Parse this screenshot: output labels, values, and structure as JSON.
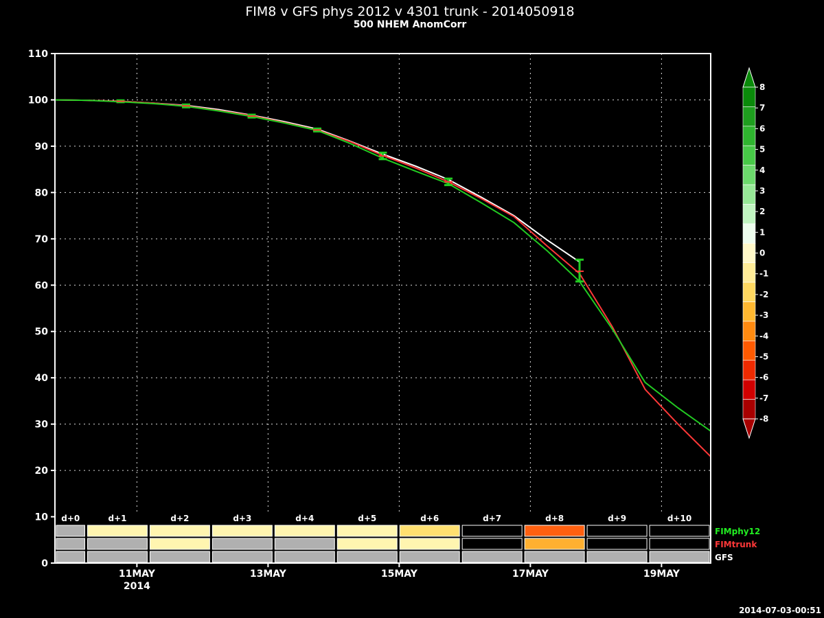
{
  "header": {
    "title": "FIM8 v GFS phys 2012 v 4301 trunk - 2014050918",
    "subtitle": "500 NHEM AnomCorr"
  },
  "timestamp": "2014-07-03-00:51",
  "chart_data": {
    "type": "line",
    "ylim": [
      0,
      110
    ],
    "yticks": [
      0,
      10,
      20,
      30,
      40,
      50,
      60,
      70,
      80,
      90,
      100,
      110
    ],
    "x_hours": [
      0,
      240
    ],
    "x_date_ticks": [
      {
        "hour": 30,
        "label": "11MAY",
        "sublabel": "2014"
      },
      {
        "hour": 78,
        "label": "13MAY"
      },
      {
        "hour": 126,
        "label": "15MAY"
      },
      {
        "hour": 174,
        "label": "17MAY"
      },
      {
        "hour": 222,
        "label": "19MAY"
      }
    ],
    "grid": true,
    "series": [
      {
        "name": "GFS",
        "color": "#ffffff",
        "x": [
          0,
          12,
          24,
          36,
          48,
          60,
          72,
          84,
          96,
          108,
          120,
          132,
          144,
          156,
          168,
          180,
          192
        ],
        "y": [
          100,
          99.9,
          99.7,
          99.3,
          98.8,
          97.9,
          96.7,
          95.3,
          93.7,
          91.1,
          88.3,
          85.7,
          82.8,
          79,
          75,
          69.8,
          65
        ]
      },
      {
        "name": "FIMtrunk",
        "color": "#ff3838",
        "x": [
          0,
          12,
          24,
          36,
          48,
          60,
          72,
          84,
          96,
          108,
          120,
          132,
          144,
          156,
          168,
          180,
          192,
          204,
          216,
          228,
          240
        ],
        "y": [
          100,
          99.9,
          99.7,
          99.3,
          98.7,
          97.7,
          96.6,
          95.1,
          93.5,
          91,
          88,
          85.3,
          82.3,
          78.7,
          74.8,
          68.5,
          62.5,
          51,
          37.5,
          30,
          23
        ]
      },
      {
        "name": "FIMphy12",
        "color": "#22cc22",
        "x": [
          0,
          12,
          24,
          36,
          48,
          60,
          72,
          84,
          96,
          108,
          120,
          132,
          144,
          156,
          168,
          180,
          192,
          204,
          216,
          228,
          240
        ],
        "y": [
          100,
          99.9,
          99.6,
          99.2,
          98.6,
          97.6,
          96.4,
          95,
          93.4,
          90.6,
          87.4,
          84.6,
          81.9,
          77.8,
          73.5,
          67.5,
          60.8,
          50.5,
          39,
          33.5,
          28.5
        ]
      }
    ],
    "error_bars": [
      {
        "hour": 24,
        "y": 99.7,
        "low": 99.5,
        "high": 99.9
      },
      {
        "hour": 48,
        "y": 98.7,
        "low": 98.4,
        "high": 99
      },
      {
        "hour": 72,
        "y": 96.5,
        "low": 96.2,
        "high": 96.8
      },
      {
        "hour": 96,
        "y": 93.5,
        "low": 93.2,
        "high": 93.8
      },
      {
        "hour": 120,
        "y": 87.9,
        "low": 87.2,
        "high": 88.6
      },
      {
        "hour": 144,
        "y": 82.3,
        "low": 81.6,
        "high": 83
      },
      {
        "hour": 192,
        "y": 63,
        "low": 60.8,
        "high": 65.5
      }
    ],
    "scorecard": {
      "days": [
        "d+0",
        "d+1",
        "d+2",
        "d+3",
        "d+4",
        "d+5",
        "d+6",
        "d+7",
        "d+8",
        "d+9",
        "d+10"
      ],
      "rows": [
        {
          "label": "FIMphy12",
          "color": "#22ee22",
          "cells": [
            "#b0b0b0",
            "#fff5b0",
            "#fff5b0",
            "#fff5b0",
            "#fff5b0",
            "#fff5b0",
            "#ffe070",
            "#000000",
            "#ff6010",
            "#000000",
            "#000000"
          ]
        },
        {
          "label": "FIMtrunk",
          "color": "#ff3838",
          "cells": [
            "#b0b0b0",
            "#b0b0b0",
            "#fff5b0",
            "#b0b0b0",
            "#b0b0b0",
            "#fff5b0",
            "#fff5b0",
            "#000000",
            "#ffb030",
            "#000000",
            "#000000"
          ]
        },
        {
          "label": "GFS",
          "color": "#ffffff",
          "cells": [
            "#b0b0b0",
            "#b0b0b0",
            "#b0b0b0",
            "#b0b0b0",
            "#b0b0b0",
            "#b0b0b0",
            "#b0b0b0",
            "#b0b0b0",
            "#b0b0b0",
            "#b0b0b0",
            "#b0b0b0"
          ]
        }
      ]
    },
    "colorbar": {
      "labels": [
        "8",
        "7",
        "6",
        "5",
        "4",
        "3",
        "2",
        "1",
        "0",
        "-1",
        "-2",
        "-3",
        "-4",
        "-5",
        "-6",
        "-7",
        "-8"
      ],
      "colors": [
        "#0a8a0a",
        "#1e9e1e",
        "#2fb52f",
        "#47c947",
        "#6cd96c",
        "#97e897",
        "#c1f4c1",
        "#eefdee",
        "#fff8c8",
        "#ffec98",
        "#ffd860",
        "#ffb830",
        "#ff8a10",
        "#ff5a00",
        "#ee2a00",
        "#d00000",
        "#a80000"
      ]
    }
  }
}
